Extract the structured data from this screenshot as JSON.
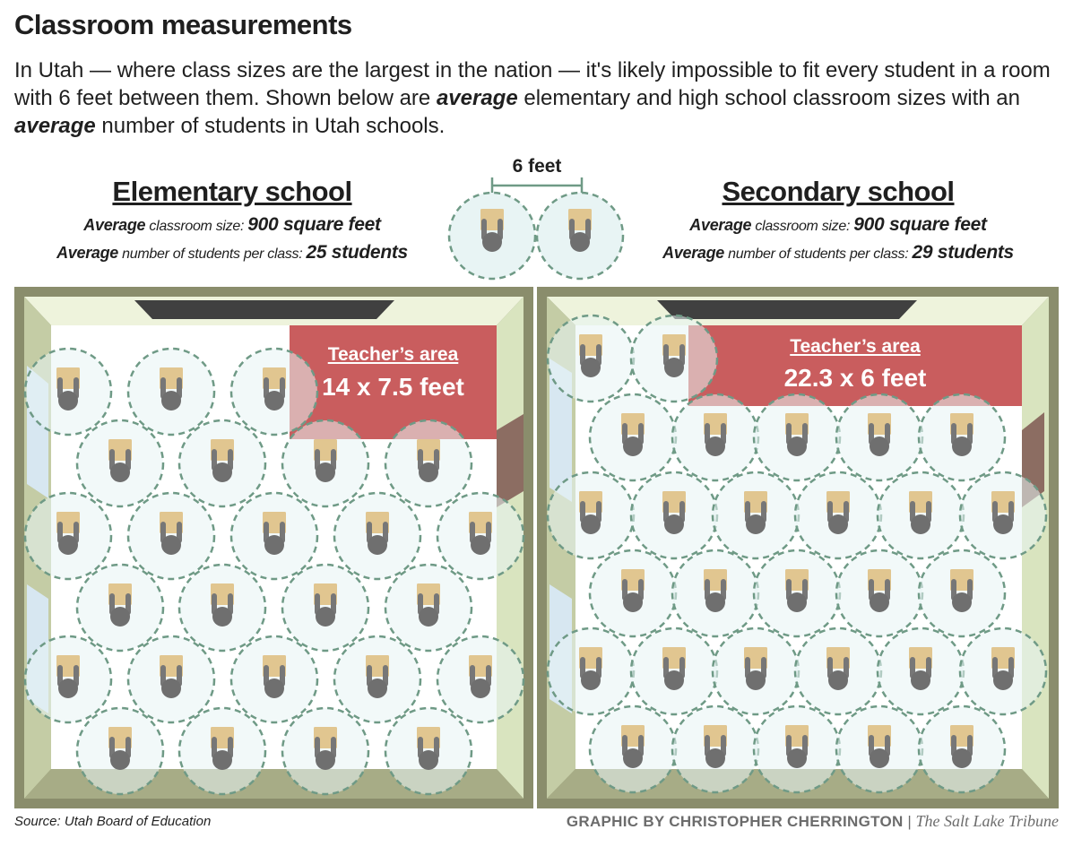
{
  "title": "Classroom measurements",
  "intro": {
    "part1": "In Utah — where class sizes are the largest in the nation — it's likely impossible to fit every student in a room with 6 feet between them. Shown below are ",
    "em1": "average",
    "part2": " elementary and high school classroom sizes with an ",
    "em2": "average",
    "part3": " number of students in Utah schools."
  },
  "legend": {
    "distance_label": "6 feet"
  },
  "elementary": {
    "heading": "Elementary school",
    "size_key": "Average",
    "size_label": " classroom size: ",
    "size_value": "900 square feet",
    "students_key": "Average",
    "students_label": " number of students per class: ",
    "students_value": "25 students",
    "teacher_area_title": "Teacher’s area",
    "teacher_area_size": "14 x 7.5 feet",
    "student_count": 25
  },
  "secondary": {
    "heading": "Secondary school",
    "size_key": "Average",
    "size_label": " classroom size: ",
    "size_value": "900 square feet",
    "students_key": "Average",
    "students_label": " number of students per class: ",
    "students_value": "29 students",
    "teacher_area_title": "Teacher’s area",
    "teacher_area_size": "22.3 x 6 feet",
    "student_count": 29
  },
  "footer": {
    "source": "Source: Utah Board of Education",
    "credit": "GRAPHIC BY CHRISTOPHER CHERRINGTON",
    "separator": "|",
    "publication": "The Salt Lake Tribune"
  },
  "colors": {
    "wall": "#8a8d6c",
    "wall_light": "#d9e4bf",
    "floor": "#ffffff",
    "teacher_area": "#c95d5e",
    "chalkboard": "#404040",
    "door": "#8c6d62",
    "window": "#d7e7f1",
    "bubble_fill": "#e8f4f4",
    "bubble_stroke": "#6f9a86",
    "desk": "#e1c690",
    "student": "#707070"
  }
}
